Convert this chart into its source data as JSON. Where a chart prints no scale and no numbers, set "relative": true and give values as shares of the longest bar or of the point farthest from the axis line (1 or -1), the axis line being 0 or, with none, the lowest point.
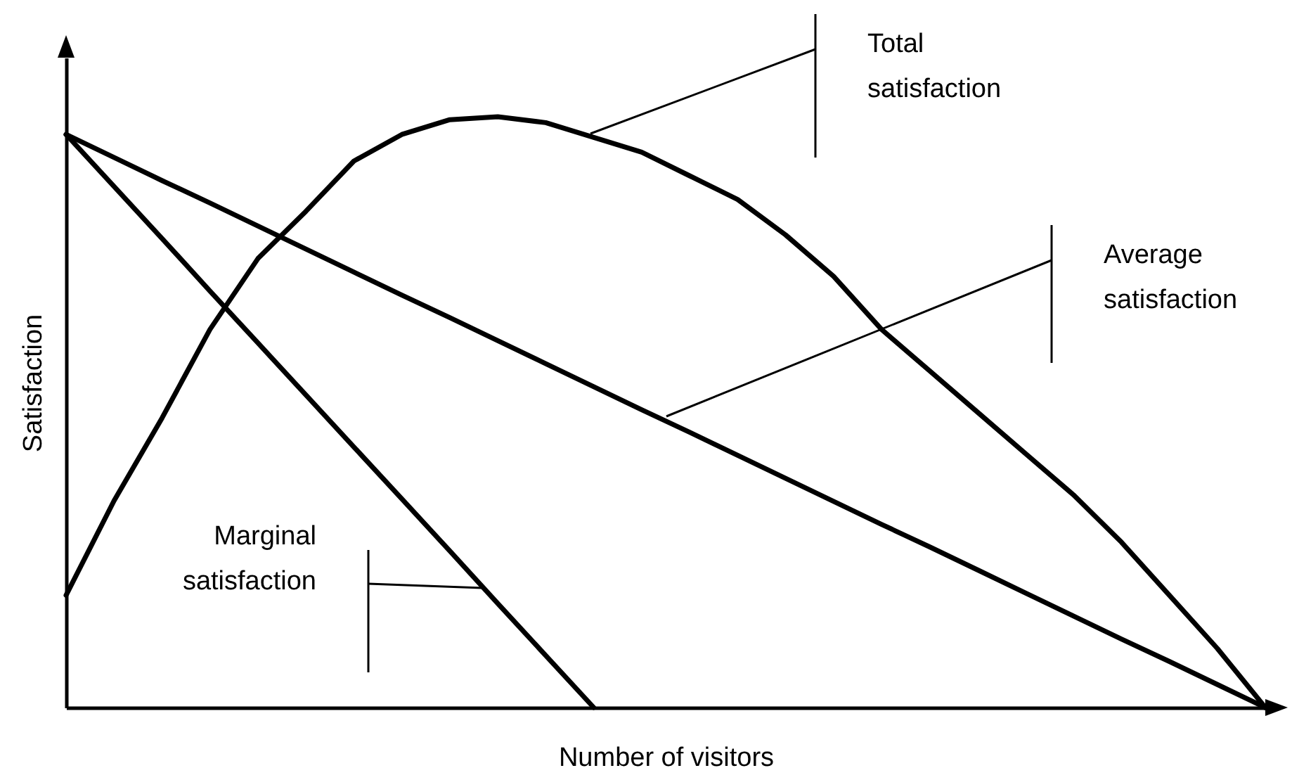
{
  "chart_data": {
    "type": "line",
    "relative": true,
    "xlabel": "Number of visitors",
    "ylabel": "Satisfaction",
    "categories": [
      null,
      null,
      null,
      null,
      null,
      null,
      null,
      null,
      null,
      null,
      null,
      null,
      null,
      null,
      null,
      null,
      null,
      null,
      null,
      null,
      null,
      null,
      null,
      null,
      null,
      null
    ],
    "series": [
      {
        "color": "#000000",
        "values": [
          0.19,
          0.35,
          0.49,
          0.64,
          0.76,
          0.84,
          0.925,
          0.97,
          0.995,
          1,
          0.99,
          0.965,
          0.94,
          0.9,
          0.86,
          0.8,
          0.73,
          0.64,
          0.57,
          0.5,
          0.43,
          0.36,
          0.28,
          0.19,
          0.1,
          0
        ]
      },
      {
        "color": "#000000",
        "values": [
          0.97,
          0.931,
          0.892,
          0.854,
          0.815,
          0.776,
          0.737,
          0.698,
          0.66,
          0.621,
          0.582,
          0.543,
          0.504,
          0.466,
          0.427,
          0.388,
          0.349,
          0.31,
          0.272,
          0.233,
          0.194,
          0.155,
          0.116,
          0.078,
          0.039,
          0
        ]
      },
      {
        "color": "#000000",
        "values": [
          0.97,
          0.882,
          0.794,
          0.705,
          0.617,
          0.529,
          0.441,
          0.353,
          0.265,
          0.176,
          0.088,
          0,
          null,
          null,
          null,
          null,
          null,
          null,
          null,
          null,
          null,
          null,
          null,
          null,
          null,
          null
        ]
      }
    ],
    "annotations": [
      "Total satisfaction",
      "Average satisfaction",
      "Marginal satisfaction"
    ]
  }
}
